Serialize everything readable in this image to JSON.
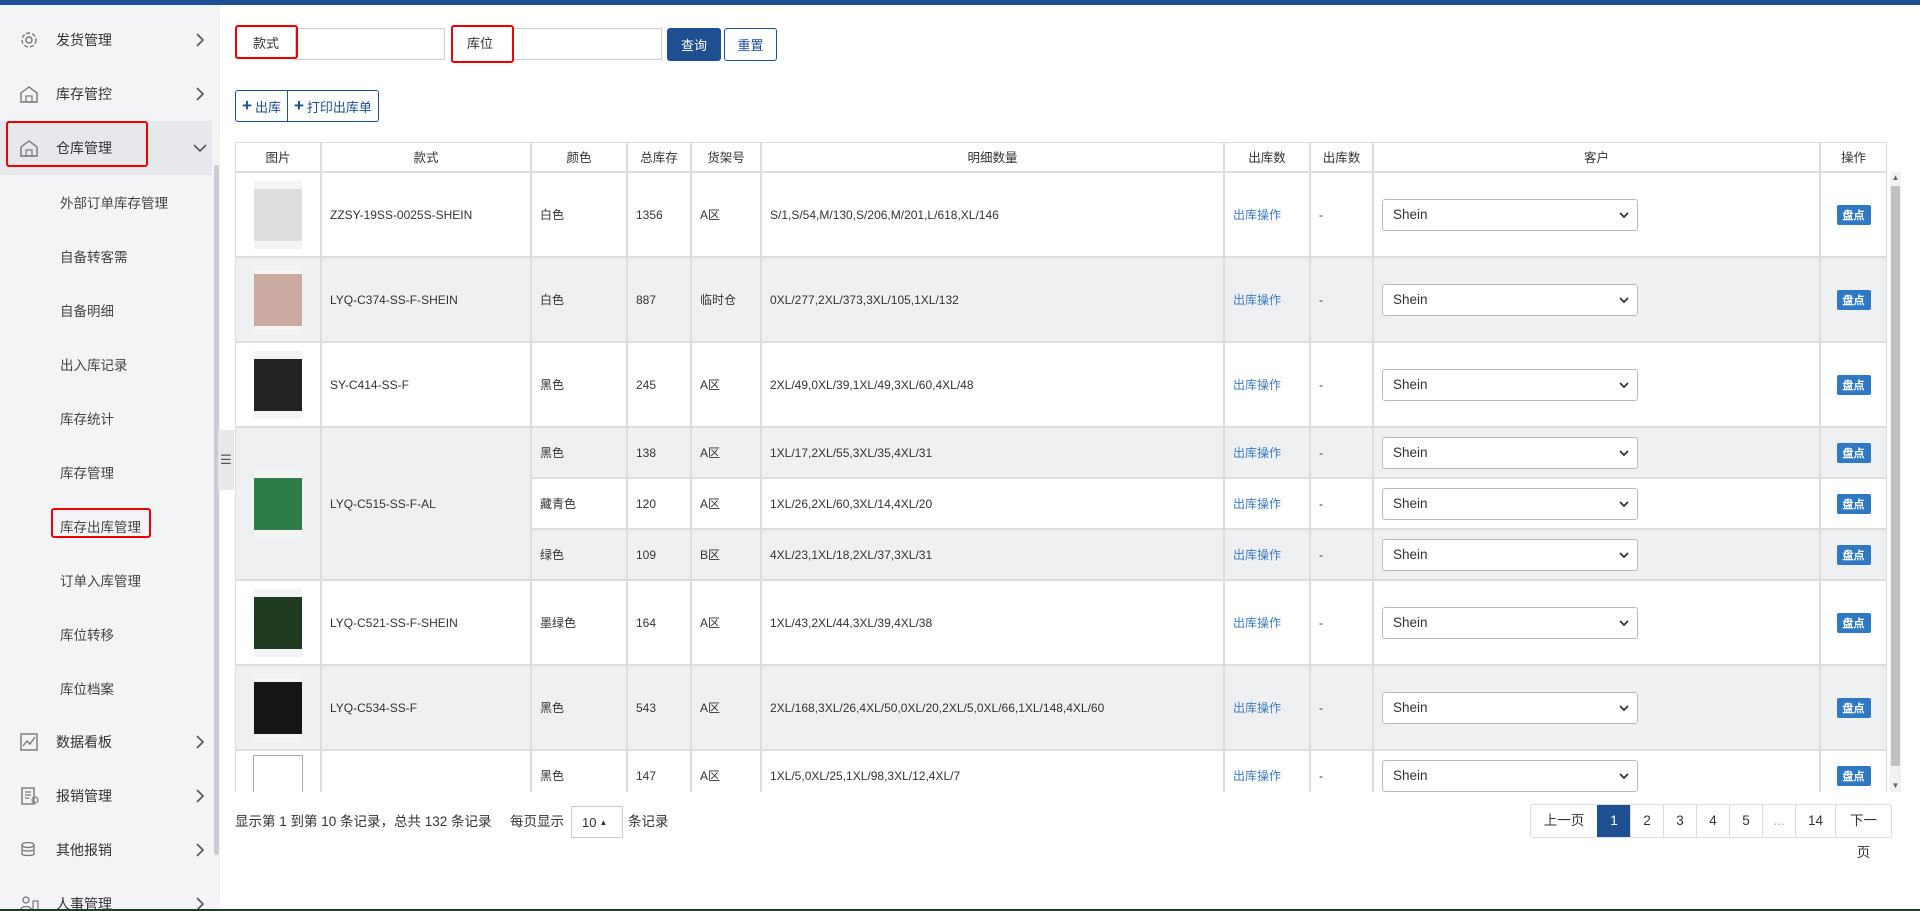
{
  "sidebar": {
    "items_top": [
      {
        "label": "发货管理",
        "icon": "gear-cycle-icon"
      },
      {
        "label": "库存管控",
        "icon": "warehouse-icon"
      },
      {
        "label": "仓库管理",
        "icon": "warehouse-icon"
      }
    ],
    "sub_items": [
      "外部订单库存管理",
      "自备转客需",
      "自备明细",
      "出入库记录",
      "库存统计",
      "库存管理",
      "库存出库管理",
      "订单入库管理",
      "库位转移",
      "库位档案"
    ],
    "items_bottom": [
      {
        "label": "数据看板",
        "icon": "chart-icon"
      },
      {
        "label": "报销管理",
        "icon": "receipt-icon"
      },
      {
        "label": "其他报销",
        "icon": "coins-icon"
      },
      {
        "label": "人事管理",
        "icon": "people-icon"
      }
    ]
  },
  "search": {
    "style_label": "款式",
    "location_label": "库位",
    "style_value": "",
    "location_value": "",
    "query_button": "查询",
    "reset_button": "重置"
  },
  "actions": {
    "out_button": "出库",
    "print_button": "打印出库单"
  },
  "table": {
    "headers": [
      "图片",
      "款式",
      "颜色",
      "总库存",
      "货架号",
      "明细数量",
      "出库数",
      "出库数",
      "客户",
      "操作"
    ],
    "op_link": "出库操作",
    "dash": "-",
    "action_label": "盘点",
    "rows": [
      {
        "style": "ZZSY-19SS-0025S-SHEIN",
        "color": "白色",
        "total": "1356",
        "shelf": "A区",
        "detail": "S/1,S/54,M/130,S/206,M/201,L/618,XL/146",
        "customer": "Shein"
      },
      {
        "style": "LYQ-C374-SS-F-SHEIN",
        "color": "白色",
        "total": "887",
        "shelf": "临时仓",
        "detail": "0XL/277,2XL/373,3XL/105,1XL/132",
        "customer": "Shein"
      },
      {
        "style": "SY-C414-SS-F",
        "color": "黑色",
        "total": "245",
        "shelf": "A区",
        "detail": "2XL/49,0XL/39,1XL/49,3XL/60,4XL/48",
        "customer": "Shein"
      },
      {
        "style": "LYQ-C515-SS-F-AL",
        "color": "黑色",
        "total": "138",
        "shelf": "A区",
        "detail": "1XL/17,2XL/55,3XL/35,4XL/31",
        "customer": "Shein"
      },
      {
        "style": "",
        "color": "藏青色",
        "total": "120",
        "shelf": "A区",
        "detail": "1XL/26,2XL/60,3XL/14,4XL/20",
        "customer": "Shein"
      },
      {
        "style": "",
        "color": "绿色",
        "total": "109",
        "shelf": "B区",
        "detail": "4XL/23,1XL/18,2XL/37,3XL/31",
        "customer": "Shein"
      },
      {
        "style": "LYQ-C521-SS-F-SHEIN",
        "color": "墨绿色",
        "total": "164",
        "shelf": "A区",
        "detail": "1XL/43,2XL/44,3XL/39,4XL/38",
        "customer": "Shein"
      },
      {
        "style": "LYQ-C534-SS-F",
        "color": "黑色",
        "total": "543",
        "shelf": "A区",
        "detail": "2XL/168,3XL/26,4XL/50,0XL/20,2XL/5,0XL/66,1XL/148,4XL/60",
        "customer": "Shein"
      },
      {
        "style": "",
        "color": "黑色",
        "total": "147",
        "shelf": "A区",
        "detail": "1XL/5,0XL/25,1XL/98,3XL/12,4XL/7",
        "customer": "Shein"
      }
    ]
  },
  "footer": {
    "summary": "显示第 1 到第 10 条记录，总共 132 条记录",
    "per_page_prefix": "每页显示",
    "page_size": "10",
    "per_page_suffix": "条记录",
    "pages": [
      "上一页",
      "1",
      "2",
      "3",
      "4",
      "5",
      "...",
      "14",
      "下一页"
    ],
    "current_page": "1"
  },
  "colors": {
    "primary": "#1d4f91",
    "highlight": "#e00000",
    "link": "#3a7bc8"
  }
}
